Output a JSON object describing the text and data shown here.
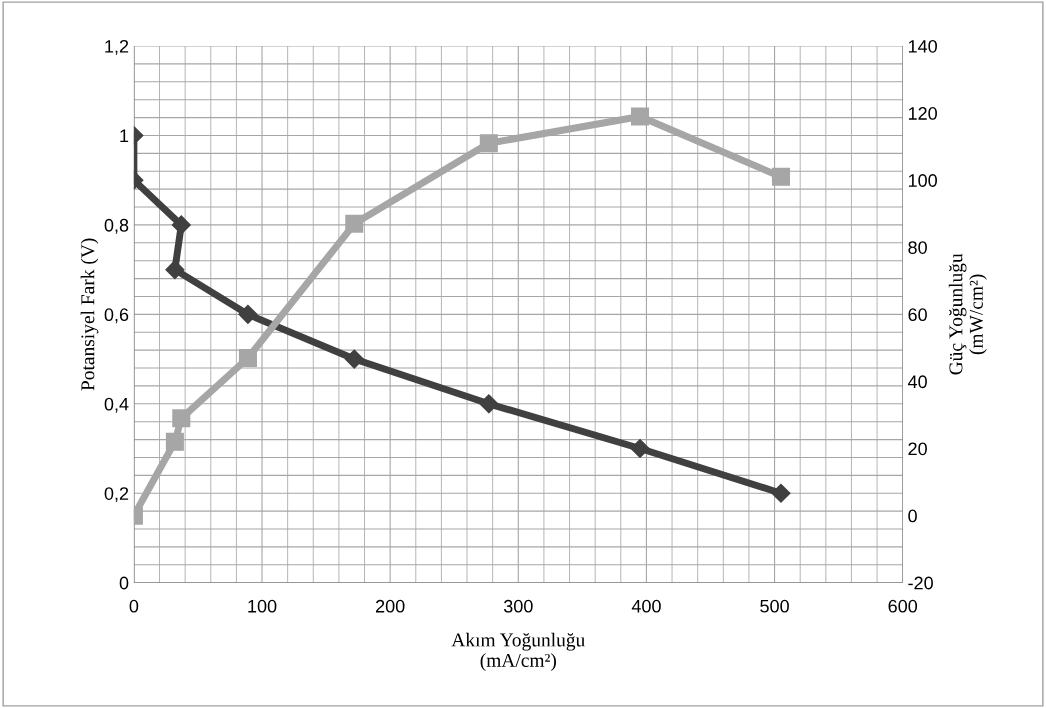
{
  "chart_data": {
    "type": "line",
    "xlabel": "Akım Yoğunluğu\n(mA/cm²)",
    "ylabel": "Potansiyel Fark (V)",
    "y2label": "Güç Yoğunluğu\n(mW/cm²)",
    "xlim": [
      0,
      600
    ],
    "xticks": [
      0,
      100,
      200,
      300,
      400,
      500,
      600
    ],
    "ylim": [
      0,
      1.2
    ],
    "yticks": [
      0,
      {
        "value": 0.2,
        "label": "0,2"
      },
      {
        "value": 0.4,
        "label": "0,4"
      },
      {
        "value": 0.6,
        "label": "0,6"
      },
      {
        "value": 0.8,
        "label": "0,8"
      },
      1,
      {
        "value": 1.2,
        "label": "1,2"
      }
    ],
    "y2lim": [
      -20,
      140
    ],
    "y2ticks": [
      -20,
      0,
      20,
      40,
      60,
      80,
      100,
      120,
      140
    ],
    "grid": true,
    "line_style": "solid",
    "series": [
      {
        "color": "#404040",
        "marker": "diamond",
        "x": [
          0,
          0,
          37,
          32,
          89,
          172,
          277,
          395,
          505
        ],
        "values": [
          1.0,
          0.9,
          0.8,
          0.7,
          0.6,
          0.5,
          0.4,
          0.3,
          0.2
        ]
      },
      {
        "color": "#a6a6a6",
        "marker": "square",
        "axis": "y2",
        "x": [
          0,
          32,
          37,
          89,
          172,
          277,
          395,
          505
        ],
        "values": [
          0,
          22,
          29,
          47,
          87,
          111,
          119,
          101
        ]
      }
    ]
  }
}
